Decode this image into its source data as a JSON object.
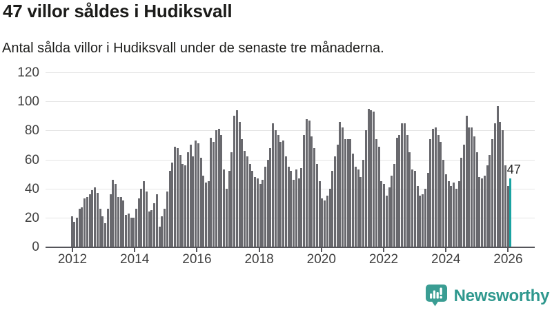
{
  "header": {
    "title": "47 villor såldes i Hudiksvall",
    "subtitle": "Antal sålda villor i Hudiksvall under de senaste tre månaderna."
  },
  "chart_data": {
    "type": "bar",
    "title": "47 villor såldes i Hudiksvall",
    "subtitle": "Antal sålda villor i Hudiksvall under de senaste tre månaderna.",
    "frequency": "monthly",
    "x_start": "2012-01",
    "x_end": "2026-03",
    "ylim": [
      0,
      120
    ],
    "y_ticks": [
      0,
      20,
      40,
      60,
      80,
      100,
      120
    ],
    "x_tick_labels": [
      "2012",
      "2014",
      "2016",
      "2018",
      "2020",
      "2022",
      "2024",
      "2026"
    ],
    "grid": "horizontal",
    "legend": "none",
    "annotation": "47",
    "highlight_last_bar": true,
    "highlight_value": 47,
    "values": [
      21,
      17,
      20,
      26,
      27,
      33,
      34,
      36,
      39,
      41,
      37,
      26,
      21,
      16,
      26,
      36,
      46,
      43,
      34,
      34,
      32,
      22,
      23,
      20,
      20,
      26,
      33,
      40,
      45,
      38,
      24,
      25,
      30,
      36,
      14,
      21,
      26,
      38,
      52,
      58,
      69,
      68,
      63,
      57,
      56,
      65,
      70,
      62,
      73,
      71,
      61,
      49,
      44,
      45,
      75,
      72,
      80,
      81,
      77,
      53,
      40,
      52,
      65,
      90,
      94,
      86,
      74,
      66,
      62,
      57,
      52,
      48,
      47,
      43,
      46,
      55,
      60,
      68,
      85,
      80,
      77,
      72,
      73,
      62,
      55,
      52,
      46,
      53,
      47,
      54,
      77,
      88,
      87,
      76,
      68,
      57,
      45,
      33,
      32,
      35,
      40,
      52,
      62,
      70,
      86,
      82,
      74,
      74,
      74,
      64,
      55,
      53,
      48,
      60,
      80,
      95,
      94,
      93,
      74,
      69,
      45,
      43,
      35,
      41,
      49,
      57,
      75,
      77,
      85,
      85,
      77,
      65,
      53,
      52,
      42,
      35,
      36,
      40,
      51,
      74,
      81,
      82,
      77,
      72,
      60,
      50,
      45,
      42,
      44,
      40,
      45,
      61,
      70,
      90,
      82,
      82,
      76,
      65,
      48,
      47,
      49,
      56,
      63,
      74,
      85,
      97,
      86,
      80,
      56,
      42,
      47
    ],
    "colors": {
      "bar": "#69696e",
      "highlight": "#1aa3a2",
      "grid": "#e4e4e4",
      "axis": "#55555a",
      "tick_label": "#3f3f3f"
    }
  },
  "footer": {
    "brand": "Newsworthy",
    "brand_color": "#2f988e",
    "logo_icon": "bar-chart-speech-bubble-icon"
  }
}
